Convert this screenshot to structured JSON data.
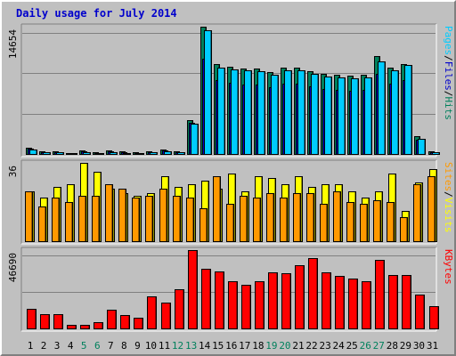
{
  "chart_data": {
    "type": "bar",
    "title": "Daily usage for July 2014",
    "colors": {
      "pages": "#00ccff",
      "files": "#0000cc",
      "hits": "#00805c",
      "sites": "#ff9900",
      "visits": "#ffff00",
      "kbytes": "#ff0000",
      "weekend": "#00805c",
      "weekday": "#000000",
      "grid": "#808080",
      "title": "#0000cc"
    },
    "categories": [
      "1",
      "2",
      "3",
      "4",
      "5",
      "6",
      "7",
      "8",
      "9",
      "10",
      "11",
      "12",
      "13",
      "14",
      "15",
      "16",
      "17",
      "18",
      "19",
      "20",
      "21",
      "22",
      "23",
      "24",
      "25",
      "26",
      "27",
      "28",
      "29",
      "30",
      "31"
    ],
    "weekend_days": [
      "5",
      "6",
      "12",
      "13",
      "19",
      "20",
      "26",
      "27"
    ],
    "panels": [
      {
        "name": "hits_files_pages",
        "ymax_label": "14654",
        "ylim": [
          0,
          14654
        ],
        "legend": [
          "Hits",
          "/",
          "Files",
          "/",
          "Pages"
        ],
        "series": [
          {
            "name": "Hits",
            "color": "#00805c",
            "values": [
              700,
              300,
              300,
              100,
              400,
              200,
              400,
              300,
              200,
              300,
              500,
              300,
              3900,
              14654,
              10300,
              10000,
              9800,
              9800,
              9400,
              9900,
              9900,
              9500,
              9200,
              9100,
              9000,
              9100,
              11300,
              9900,
              10400,
              2000,
              300
            ]
          },
          {
            "name": "Files",
            "color": "#0000cc",
            "values": [
              600,
              200,
              200,
              100,
              300,
              100,
              300,
              200,
              150,
              250,
              400,
              250,
              3600,
              11000,
              8500,
              8200,
              8000,
              8000,
              7700,
              8100,
              8100,
              7800,
              7500,
              7400,
              7300,
              7400,
              9200,
              8100,
              8500,
              1600,
              250
            ]
          },
          {
            "name": "Pages",
            "color": "#00ccff",
            "values": [
              500,
              200,
              200,
              100,
              200,
              100,
              200,
              150,
              100,
              200,
              300,
              200,
              3500,
              14200,
              9900,
              9700,
              9600,
              9500,
              9100,
              9600,
              9600,
              9200,
              8900,
              8800,
              8700,
              8800,
              10700,
              9600,
              10200,
              1700,
              200
            ]
          }
        ]
      },
      {
        "name": "visits_sites",
        "ymax_label": "36",
        "ylim": [
          0,
          36
        ],
        "legend": [
          "Visits",
          "/",
          "Sites"
        ],
        "series": [
          {
            "name": "Visits",
            "color": "#ffff00",
            "values": [
              23,
              20,
              25,
              26,
              36,
              32,
              24,
              22,
              21,
              22,
              30,
              25,
              26,
              28,
              24,
              31,
              23,
              30,
              29,
              26,
              30,
              25,
              26,
              26,
              23,
              20,
              23,
              31,
              14,
              27,
              33
            ]
          },
          {
            "name": "Sites",
            "color": "#ff9900",
            "values": [
              23,
              16,
              20,
              18,
              21,
              21,
              26,
              24,
              20,
              21,
              24,
              21,
              20,
              15,
              30,
              17,
              21,
              20,
              22,
              20,
              22,
              22,
              17,
              23,
              18,
              17,
              19,
              18,
              11,
              26,
              30
            ]
          }
        ]
      },
      {
        "name": "kbytes",
        "ymax_label": "46690",
        "ylim": [
          0,
          46690
        ],
        "legend": [
          "KBytes"
        ],
        "series": [
          {
            "name": "KBytes",
            "color": "#ff0000",
            "values": [
              11600,
              8400,
              8600,
              1900,
              2300,
              3500,
              11300,
              7900,
              6600,
              18900,
              15500,
              23200,
              46690,
              35300,
              34200,
              28100,
              26000,
              28200,
              33200,
              32900,
              37700,
              42100,
              33400,
              31200,
              29800,
              28200,
              40600,
              31600,
              31700,
              19900,
              13500
            ]
          }
        ]
      }
    ]
  }
}
